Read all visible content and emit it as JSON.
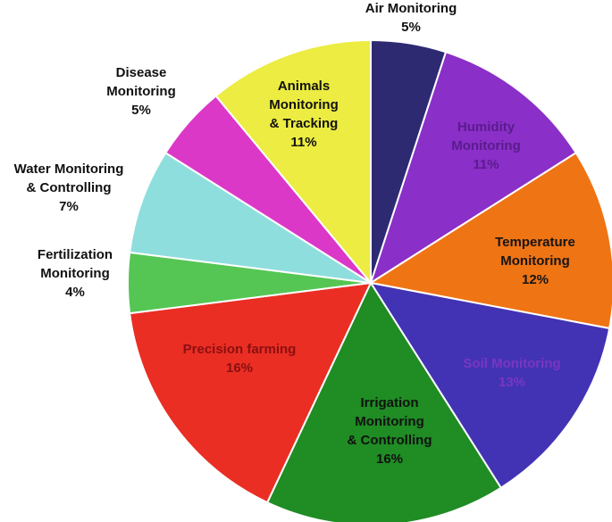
{
  "chart_data": {
    "type": "pie",
    "title": "",
    "start_angle_deg": 0,
    "direction": "clockwise",
    "slices": [
      {
        "label": "Air Monitoring",
        "value": 5,
        "value_label": "5%",
        "color": "#2e2a72",
        "text_color": "#111111"
      },
      {
        "label": "Humidity Monitoring",
        "value": 11,
        "value_label": "11%",
        "color": "#8a2fc8",
        "text_color": "#5a1c8c"
      },
      {
        "label": "Temperature Monitoring",
        "value": 12,
        "value_label": "12%",
        "color": "#ef7414",
        "text_color": "#151515"
      },
      {
        "label": "Soil Monitoring",
        "value": 13,
        "value_label": "13%",
        "color": "#4233b4",
        "text_color": "#7a36c2"
      },
      {
        "label": "Irrigation Monitoring & Controlling",
        "value": 16,
        "value_label": "16%",
        "color": "#1f8c24",
        "text_color": "#111111"
      },
      {
        "label": "Precision farming",
        "value": 16,
        "value_label": "16%",
        "color": "#ea2e24",
        "text_color": "#8a1010"
      },
      {
        "label": "Fertilization Monitoring",
        "value": 4,
        "value_label": "4%",
        "color": "#55c654",
        "text_color": "#111111"
      },
      {
        "label": "Water Monitoring & Controlling",
        "value": 7,
        "value_label": "7%",
        "color": "#8fdede",
        "text_color": "#111111"
      },
      {
        "label": "Disease Monitoring",
        "value": 5,
        "value_label": "5%",
        "color": "#dc38c8",
        "text_color": "#111111"
      },
      {
        "label": "Animals Monitoring & Tracking",
        "value": 11,
        "value_label": "11%",
        "color": "#ecec42",
        "text_color": "#111111"
      }
    ]
  }
}
